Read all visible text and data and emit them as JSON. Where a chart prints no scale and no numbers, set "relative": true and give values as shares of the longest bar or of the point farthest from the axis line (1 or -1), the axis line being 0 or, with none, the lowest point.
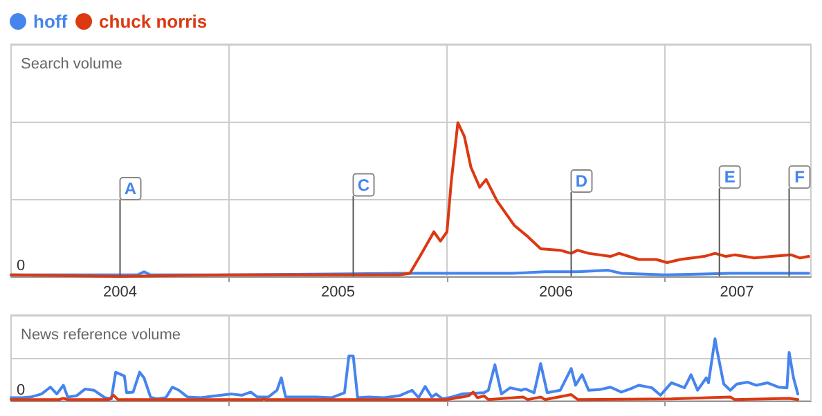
{
  "chart_data": [
    {
      "type": "line",
      "title": "Search volume",
      "relative": true,
      "legend": "top left",
      "grid": true,
      "xlim": [
        2004,
        2007.67
      ],
      "xticks": [
        {
          "value": 2004.5,
          "label": "2004"
        },
        {
          "value": 2005,
          "label": null
        },
        {
          "value": 2005.5,
          "label": "2005"
        },
        {
          "value": 2006,
          "label": null
        },
        {
          "value": 2006.5,
          "label": "2006"
        },
        {
          "value": 2007,
          "label": null
        },
        {
          "value": 2007.33,
          "label": "2007"
        }
      ],
      "annotations": [
        {
          "text": "0",
          "x": 2004,
          "y": 0
        }
      ],
      "ref_lines": [
        {
          "axis": "x",
          "value": 2004.5,
          "label": "A"
        },
        {
          "axis": "x",
          "value": 2005.57,
          "label": "C"
        },
        {
          "axis": "x",
          "value": 2006.57,
          "label": "D"
        },
        {
          "axis": "x",
          "value": 2007.25,
          "label": "E"
        },
        {
          "axis": "x",
          "value": 2007.57,
          "label": "F"
        }
      ],
      "series": [
        {
          "name": "hoff",
          "color": "#4684ee",
          "x": [
            2004.0,
            2004.58,
            2004.61,
            2004.64,
            2005.0,
            2005.8,
            2005.85,
            2006.0,
            2006.3,
            2006.45,
            2006.6,
            2006.74,
            2006.8,
            2007.0,
            2007.3,
            2007.66
          ],
          "values": [
            0.01,
            0.01,
            0.03,
            0.01,
            0.01,
            0.02,
            0.02,
            0.02,
            0.02,
            0.03,
            0.03,
            0.04,
            0.02,
            0.01,
            0.02,
            0.02
          ]
        },
        {
          "name": "chuck norris",
          "color": "#dc3912",
          "x": [
            2004.0,
            2004.5,
            2005.0,
            2005.5,
            2005.78,
            2005.83,
            2005.88,
            2005.94,
            2005.97,
            2006.0,
            2006.02,
            2006.05,
            2006.08,
            2006.11,
            2006.15,
            2006.18,
            2006.23,
            2006.31,
            2006.37,
            2006.43,
            2006.52,
            2006.57,
            2006.6,
            2006.65,
            2006.75,
            2006.79,
            2006.88,
            2006.96,
            2007.01,
            2007.07,
            2007.18,
            2007.23,
            2007.28,
            2007.32,
            2007.41,
            2007.49,
            2007.58,
            2007.62,
            2007.66
          ],
          "values": [
            0.01,
            0.0,
            0.01,
            0.01,
            0.01,
            0.02,
            0.14,
            0.29,
            0.23,
            0.29,
            0.62,
            1.0,
            0.91,
            0.71,
            0.58,
            0.63,
            0.49,
            0.33,
            0.26,
            0.18,
            0.17,
            0.15,
            0.17,
            0.15,
            0.13,
            0.15,
            0.11,
            0.11,
            0.09,
            0.11,
            0.13,
            0.15,
            0.13,
            0.14,
            0.12,
            0.13,
            0.14,
            0.12,
            0.13
          ]
        }
      ]
    },
    {
      "type": "line",
      "title": "News reference volume",
      "relative": true,
      "grid": true,
      "tick_labels": false,
      "xlim": [
        2004,
        2007.67
      ],
      "xticks": [
        2005,
        2006,
        2007
      ],
      "annotations": [
        {
          "text": "0",
          "x": 2004,
          "y": 0
        }
      ],
      "series": [
        {
          "color": "#4684ee",
          "x": [
            2004.0,
            2004.05,
            2004.09,
            2004.14,
            2004.18,
            2004.21,
            2004.24,
            2004.26,
            2004.3,
            2004.34,
            2004.38,
            2004.43,
            2004.46,
            2004.48,
            2004.52,
            2004.53,
            2004.56,
            2004.59,
            2004.61,
            2004.64,
            2004.67,
            2004.71,
            2004.74,
            2004.77,
            2004.81,
            2004.87,
            2004.96,
            2005.01,
            2005.06,
            2005.1,
            2005.13,
            2005.18,
            2005.22,
            2005.24,
            2005.26,
            2005.31,
            2005.4,
            2005.47,
            2005.53,
            2005.55,
            2005.57,
            2005.59,
            2005.64,
            2005.71,
            2005.78,
            2005.84,
            2005.87,
            2005.9,
            2005.93,
            2005.95,
            2005.98,
            2006.02,
            2006.07,
            2006.17,
            2006.19,
            2006.22,
            2006.25,
            2006.29,
            2006.34,
            2006.36,
            2006.4,
            2006.43,
            2006.46,
            2006.52,
            2006.57,
            2006.59,
            2006.62,
            2006.65,
            2006.7,
            2006.75,
            2006.8,
            2006.84,
            2006.88,
            2006.94,
            2006.98,
            2007.03,
            2007.09,
            2007.12,
            2007.15,
            2007.19,
            2007.2,
            2007.23,
            2007.24,
            2007.27,
            2007.3,
            2007.33,
            2007.38,
            2007.42,
            2007.47,
            2007.52,
            2007.56,
            2007.57,
            2007.59,
            2007.61
          ],
          "values": [
            0.05,
            0.05,
            0.06,
            0.11,
            0.22,
            0.11,
            0.25,
            0.06,
            0.08,
            0.19,
            0.17,
            0.05,
            0.03,
            0.46,
            0.4,
            0.13,
            0.14,
            0.46,
            0.37,
            0.06,
            0.03,
            0.05,
            0.22,
            0.17,
            0.06,
            0.05,
            0.09,
            0.11,
            0.09,
            0.14,
            0.06,
            0.06,
            0.17,
            0.37,
            0.06,
            0.06,
            0.06,
            0.05,
            0.13,
            0.72,
            0.72,
            0.05,
            0.06,
            0.05,
            0.08,
            0.17,
            0.05,
            0.23,
            0.06,
            0.11,
            0.03,
            0.06,
            0.11,
            0.13,
            0.17,
            0.58,
            0.11,
            0.21,
            0.17,
            0.19,
            0.13,
            0.6,
            0.13,
            0.17,
            0.52,
            0.25,
            0.42,
            0.17,
            0.18,
            0.22,
            0.14,
            0.19,
            0.25,
            0.21,
            0.09,
            0.29,
            0.21,
            0.42,
            0.17,
            0.37,
            0.29,
            1.0,
            0.8,
            0.27,
            0.17,
            0.27,
            0.3,
            0.25,
            0.29,
            0.22,
            0.21,
            0.78,
            0.37,
            0.11
          ]
        },
        {
          "color": "#dc3912",
          "x": [
            2004.0,
            2004.22,
            2004.24,
            2004.26,
            2004.45,
            2004.47,
            2004.49,
            2005.15,
            2005.16,
            2005.17,
            2005.95,
            2006.0,
            2006.1,
            2006.12,
            2006.14,
            2006.17,
            2006.19,
            2006.35,
            2006.37,
            2006.43,
            2006.45,
            2006.57,
            2006.6,
            2007.03,
            2007.3,
            2007.32,
            2007.57,
            2007.61
          ],
          "values": [
            0.02,
            0.02,
            0.04,
            0.02,
            0.02,
            0.09,
            0.02,
            0.02,
            0.03,
            0.02,
            0.02,
            0.02,
            0.08,
            0.14,
            0.05,
            0.08,
            0.02,
            0.06,
            0.02,
            0.06,
            0.02,
            0.1,
            0.02,
            0.03,
            0.06,
            0.02,
            0.04,
            0.02
          ]
        }
      ]
    }
  ]
}
